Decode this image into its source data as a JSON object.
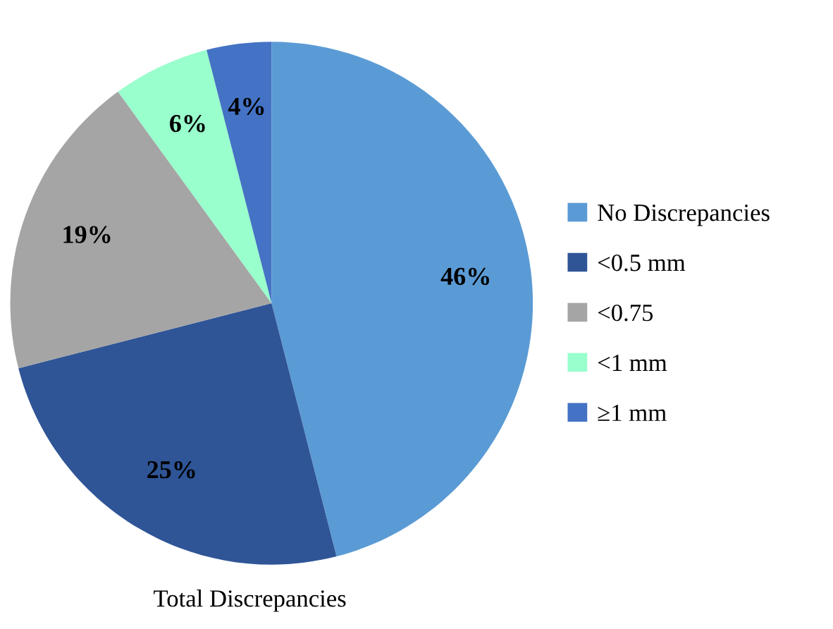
{
  "chart_data": {
    "type": "pie",
    "title": "Total Discrepancies",
    "categories": [
      "No Discrepancies",
      "<0.5 mm",
      "<0.75",
      "<1 mm",
      "≥1 mm"
    ],
    "values": [
      46,
      25,
      19,
      6,
      4
    ],
    "colors": [
      "#5b9bd5",
      "#2f5597",
      "#a5a5a5",
      "#99ffcc",
      "#4472c4"
    ],
    "value_labels": [
      "46%",
      "25%",
      "19%",
      "6%",
      "4%"
    ],
    "legend": "right"
  }
}
